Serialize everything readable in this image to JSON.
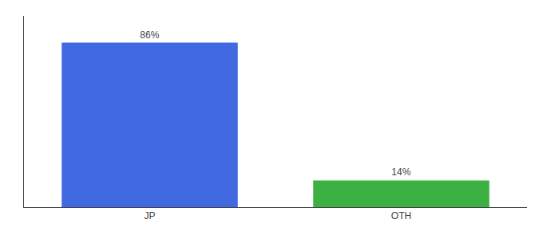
{
  "chart_data": {
    "type": "bar",
    "categories": [
      "JP",
      "OTH"
    ],
    "values": [
      86,
      14
    ],
    "value_labels": [
      "86%",
      "14%"
    ],
    "colors": [
      "#4169E1",
      "#3CB043"
    ],
    "ylim": [
      0,
      100
    ],
    "yticks": [],
    "grid": false,
    "data_labels": true,
    "tick_labels": "x"
  }
}
